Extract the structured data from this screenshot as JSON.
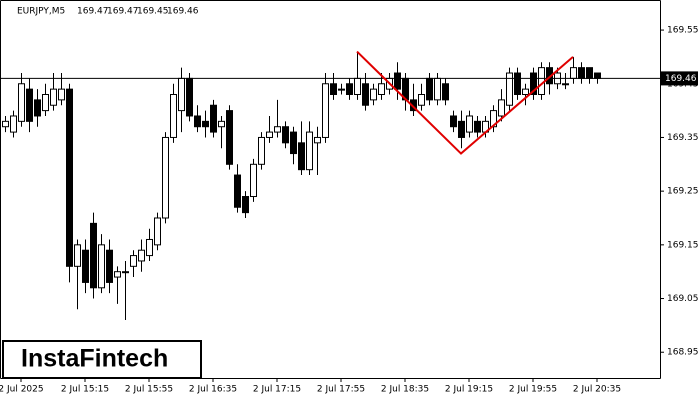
{
  "chart_data": {
    "type": "candlestick",
    "symbol": "EURJPY,M5",
    "header_values": [
      169.47,
      169.47,
      169.45,
      169.46
    ],
    "logo": "InstaFintech",
    "categories": [
      null,
      null,
      "2 Jul 2025",
      null,
      null,
      null,
      null,
      null,
      null,
      null,
      "2 Jul 15:15",
      null,
      null,
      null,
      null,
      null,
      null,
      null,
      "2 Jul 15:55",
      null,
      null,
      null,
      null,
      null,
      null,
      null,
      "2 Jul 16:35",
      null,
      null,
      null,
      null,
      null,
      null,
      null,
      "2 Jul 17:15",
      null,
      null,
      null,
      null,
      null,
      null,
      null,
      "2 Jul 17:55",
      null,
      null,
      null,
      null,
      null,
      null,
      null,
      "2 Jul 18:35",
      null,
      null,
      null,
      null,
      null,
      null,
      null,
      "2 Jul 19:15",
      null,
      null,
      null,
      null,
      null,
      null,
      null,
      "2 Jul 19:55",
      null,
      null,
      null,
      null,
      null,
      null,
      null,
      "2 Jul 20:35"
    ],
    "open": [
      169.37,
      169.36,
      169.38,
      169.44,
      169.42,
      169.4,
      169.41,
      169.42,
      169.44,
      169.11,
      169.14,
      169.19,
      169.07,
      169.14,
      169.09,
      169.1,
      169.11,
      169.12,
      169.13,
      169.15,
      169.2,
      169.35,
      169.4,
      169.46,
      169.39,
      169.38,
      169.41,
      169.37,
      169.4,
      169.28,
      169.24,
      169.24,
      169.3,
      169.35,
      169.36,
      169.37,
      169.36,
      169.34,
      169.29,
      169.34,
      169.35,
      169.45,
      169.44,
      169.45,
      169.43,
      169.45,
      169.42,
      169.43,
      169.44,
      169.47,
      169.46,
      169.42,
      169.41,
      169.46,
      169.42,
      169.45,
      169.39,
      169.38,
      169.36,
      169.38,
      169.36,
      169.37,
      169.39,
      169.41,
      169.47,
      169.43,
      169.47,
      169.43,
      169.48,
      169.45,
      169.45,
      169.46,
      169.48,
      169.48,
      169.47
    ],
    "high": [
      169.39,
      169.4,
      169.47,
      169.46,
      169.44,
      169.45,
      169.47,
      169.47,
      169.45,
      169.16,
      169.16,
      169.21,
      169.17,
      169.16,
      169.11,
      169.12,
      169.14,
      169.16,
      169.18,
      169.21,
      169.36,
      169.45,
      169.48,
      169.47,
      169.41,
      169.4,
      169.42,
      169.39,
      169.41,
      169.3,
      169.25,
      169.31,
      169.36,
      169.39,
      169.42,
      169.38,
      169.37,
      169.38,
      169.38,
      169.37,
      169.47,
      169.47,
      169.45,
      169.46,
      169.51,
      169.47,
      169.45,
      169.47,
      169.47,
      169.49,
      169.47,
      169.45,
      169.45,
      169.47,
      169.47,
      169.46,
      169.4,
      169.4,
      169.4,
      169.39,
      169.39,
      169.41,
      169.44,
      169.48,
      169.48,
      169.45,
      169.48,
      169.49,
      169.49,
      169.48,
      169.47,
      169.5,
      169.49,
      169.48,
      169.47
    ],
    "low": [
      169.36,
      169.35,
      169.37,
      169.36,
      169.37,
      169.39,
      169.4,
      169.41,
      169.08,
      169.03,
      169.06,
      169.05,
      169.06,
      169.06,
      169.04,
      169.01,
      169.09,
      169.1,
      169.12,
      169.14,
      169.19,
      169.34,
      169.36,
      169.38,
      169.36,
      169.35,
      169.35,
      169.33,
      169.29,
      169.21,
      169.2,
      169.23,
      169.29,
      169.34,
      169.35,
      169.33,
      169.3,
      169.28,
      169.28,
      169.28,
      169.34,
      169.42,
      169.43,
      169.42,
      169.42,
      169.4,
      169.41,
      169.42,
      169.43,
      169.42,
      169.4,
      169.39,
      169.4,
      169.41,
      169.41,
      169.41,
      169.36,
      169.33,
      169.35,
      169.35,
      169.35,
      169.36,
      169.38,
      169.4,
      169.42,
      169.41,
      169.42,
      169.42,
      169.43,
      169.44,
      169.44,
      169.45,
      169.45,
      169.45,
      169.45
    ],
    "close": [
      169.38,
      169.39,
      169.45,
      169.38,
      169.39,
      169.43,
      169.44,
      169.44,
      169.11,
      169.15,
      169.08,
      169.07,
      169.15,
      169.08,
      169.1,
      169.1,
      169.13,
      169.14,
      169.16,
      169.2,
      169.35,
      169.43,
      169.46,
      169.39,
      169.37,
      169.37,
      169.36,
      169.38,
      169.3,
      169.22,
      169.21,
      169.3,
      169.35,
      169.36,
      169.37,
      169.34,
      169.32,
      169.29,
      169.36,
      169.35,
      169.45,
      169.43,
      169.44,
      169.43,
      169.46,
      169.41,
      169.44,
      169.45,
      169.46,
      169.44,
      169.42,
      169.4,
      169.43,
      169.42,
      169.46,
      169.42,
      169.37,
      169.35,
      169.39,
      169.36,
      169.38,
      169.4,
      169.42,
      169.47,
      169.43,
      169.44,
      169.43,
      169.48,
      169.45,
      169.47,
      169.45,
      169.48,
      169.46,
      169.46,
      169.46
    ],
    "up_color": "#ffffff",
    "down_color": "#000000",
    "last_price": 169.46,
    "pattern": {
      "color": "#e00000",
      "x": [
        44,
        57,
        71
      ],
      "y": [
        169.51,
        169.32,
        169.5
      ]
    },
    "ylim": [
      168.902,
      169.606
    ],
    "yticks": [
      168.95,
      169.05,
      169.15,
      169.25,
      169.35,
      169.45,
      169.55
    ]
  }
}
